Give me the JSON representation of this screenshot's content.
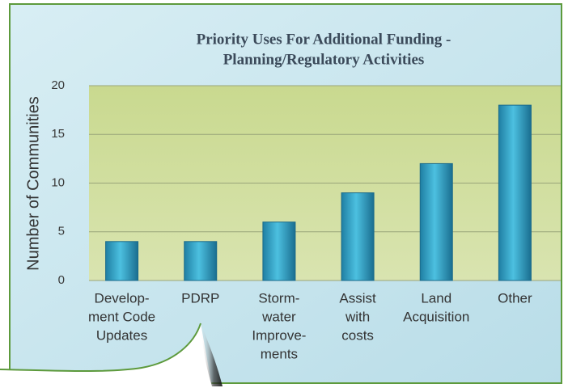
{
  "chart_data": {
    "type": "bar",
    "title": [
      "Priority Uses For Additional Funding -",
      "Planning/Regulatory Activities"
    ],
    "y_label": "Number of Communities",
    "categories": [
      [
        "Develop-",
        "ment Code",
        "Updates"
      ],
      [
        "PDRP"
      ],
      [
        "Storm-",
        "water",
        "Improve-",
        "ments"
      ],
      [
        "Assist",
        "with",
        "costs"
      ],
      [
        "Land",
        "Acquisition"
      ],
      [
        "Other"
      ]
    ],
    "values": [
      4,
      4,
      6,
      9,
      12,
      18
    ],
    "ylim": [
      0,
      20
    ],
    "yticks": [
      0,
      5,
      10,
      15,
      20
    ],
    "grid": true
  }
}
